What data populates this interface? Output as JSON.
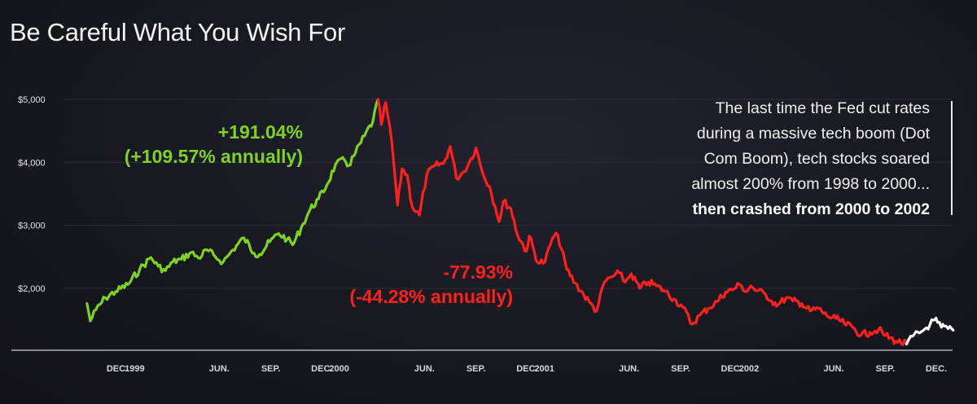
{
  "title": "Be Careful What You Wish For",
  "annotations": {
    "gain_pct": "+191.04%",
    "gain_annual": "(+109.57% annually)",
    "loss_pct": "-77.93%",
    "loss_annual": "(-44.28% annually)"
  },
  "note": {
    "lines": [
      "The last time the Fed cut rates",
      "during a massive tech boom (Dot",
      "Com Boom), tech stocks soared",
      "almost 200% from 1998 to 2000..."
    ],
    "bold_line": "then crashed from 2000 to 2002"
  },
  "colors": {
    "rise": "#7ed321",
    "fall": "#ff1f1f",
    "recent": "#ffffff",
    "background": "#17171f"
  },
  "chart_data": {
    "type": "line",
    "title": "Be Careful What You Wish For",
    "xlabel": "",
    "ylabel": "",
    "yticks": [
      {
        "value": 2000,
        "label": "$2,000"
      },
      {
        "value": 3000,
        "label": "$3,000"
      },
      {
        "value": 4000,
        "label": "$4,000"
      },
      {
        "value": 5000,
        "label": "$5,000"
      }
    ],
    "ylim": [
      1000,
      5000
    ],
    "xlim": [
      "1998-10-08",
      "1002-12-31"
    ],
    "xticks": [
      {
        "date": "1998-12-01",
        "label": "DEC."
      },
      {
        "date": "1999-01-01",
        "label": "1999"
      },
      {
        "date": "1999-06-01",
        "label": "JUN."
      },
      {
        "date": "1999-09-01",
        "label": "SEP."
      },
      {
        "date": "1999-12-01",
        "label": "DEC."
      },
      {
        "date": "2000-01-01",
        "label": "2000"
      },
      {
        "date": "2000-06-01",
        "label": "JUN."
      },
      {
        "date": "2000-09-01",
        "label": "SEP."
      },
      {
        "date": "2000-12-01",
        "label": "DEC."
      },
      {
        "date": "2001-01-01",
        "label": "2001"
      },
      {
        "date": "2001-06-01",
        "label": "JUN."
      },
      {
        "date": "2001-09-01",
        "label": "SEP."
      },
      {
        "date": "2001-12-01",
        "label": "DEC."
      },
      {
        "date": "2002-01-01",
        "label": "2002"
      },
      {
        "date": "2002-06-01",
        "label": "JUN."
      },
      {
        "date": "2002-09-01",
        "label": "SEP."
      },
      {
        "date": "2002-12-01",
        "label": "DEC."
      }
    ],
    "grid": true,
    "series": [
      {
        "color": "#7ed321",
        "points": [
          [
            "1998-10-08",
            1760
          ],
          [
            "1998-10-14",
            1480
          ],
          [
            "1998-10-24",
            1660
          ],
          [
            "1998-11-10",
            1850
          ],
          [
            "1998-11-28",
            1950
          ],
          [
            "1998-12-20",
            2060
          ],
          [
            "1999-01-10",
            2300
          ],
          [
            "1999-01-30",
            2490
          ],
          [
            "1999-02-12",
            2350
          ],
          [
            "1999-02-25",
            2280
          ],
          [
            "1999-03-10",
            2420
          ],
          [
            "1999-03-25",
            2460
          ],
          [
            "1999-04-12",
            2570
          ],
          [
            "1999-04-25",
            2480
          ],
          [
            "1999-05-10",
            2610
          ],
          [
            "1999-05-25",
            2500
          ],
          [
            "1999-06-08",
            2420
          ],
          [
            "1999-06-25",
            2610
          ],
          [
            "1999-07-15",
            2800
          ],
          [
            "1999-08-02",
            2560
          ],
          [
            "1999-08-12",
            2540
          ],
          [
            "1999-08-30",
            2740
          ],
          [
            "1999-09-15",
            2870
          ],
          [
            "1999-09-30",
            2780
          ],
          [
            "1999-10-10",
            2690
          ],
          [
            "1999-10-25",
            2960
          ],
          [
            "1999-11-10",
            3250
          ],
          [
            "1999-11-25",
            3420
          ],
          [
            "1999-12-10",
            3640
          ],
          [
            "1999-12-25",
            3960
          ],
          [
            "2000-01-10",
            4040
          ],
          [
            "2000-01-18",
            3950
          ],
          [
            "2000-01-30",
            4150
          ],
          [
            "2000-02-15",
            4420
          ],
          [
            "2000-03-01",
            4650
          ],
          [
            "2000-03-10",
            5000
          ]
        ]
      },
      {
        "color": "#ff1f1f",
        "points": [
          [
            "2000-03-10",
            5000
          ],
          [
            "2000-03-16",
            4600
          ],
          [
            "2000-03-24",
            4950
          ],
          [
            "2000-04-04",
            4300
          ],
          [
            "2000-04-14",
            3320
          ],
          [
            "2000-04-22",
            3900
          ],
          [
            "2000-05-01",
            3800
          ],
          [
            "2000-05-10",
            3300
          ],
          [
            "2000-05-23",
            3160
          ],
          [
            "2000-06-05",
            3800
          ],
          [
            "2000-06-20",
            3950
          ],
          [
            "2000-07-05",
            3980
          ],
          [
            "2000-07-17",
            4250
          ],
          [
            "2000-07-28",
            3750
          ],
          [
            "2000-08-10",
            3850
          ],
          [
            "2000-08-20",
            4000
          ],
          [
            "2000-09-01",
            4230
          ],
          [
            "2000-09-12",
            3850
          ],
          [
            "2000-09-25",
            3620
          ],
          [
            "2000-10-05",
            3300
          ],
          [
            "2000-10-12",
            3060
          ],
          [
            "2000-10-20",
            3380
          ],
          [
            "2000-11-02",
            3270
          ],
          [
            "2000-11-14",
            2850
          ],
          [
            "2000-11-30",
            2590
          ],
          [
            "2000-12-05",
            2830
          ],
          [
            "2000-12-20",
            2410
          ],
          [
            "2001-01-02",
            2420
          ],
          [
            "2001-01-15",
            2790
          ],
          [
            "2001-01-25",
            2840
          ],
          [
            "2001-02-10",
            2300
          ],
          [
            "2001-02-25",
            2080
          ],
          [
            "2001-03-12",
            1900
          ],
          [
            "2001-03-22",
            1780
          ],
          [
            "2001-04-04",
            1640
          ],
          [
            "2001-04-18",
            2100
          ],
          [
            "2001-05-01",
            2180
          ],
          [
            "2001-05-15",
            2240
          ],
          [
            "2001-05-25",
            2100
          ],
          [
            "2001-06-05",
            2230
          ],
          [
            "2001-06-20",
            2000
          ],
          [
            "2001-07-05",
            2100
          ],
          [
            "2001-07-20",
            2040
          ],
          [
            "2001-08-05",
            1950
          ],
          [
            "2001-08-20",
            1830
          ],
          [
            "2001-09-05",
            1700
          ],
          [
            "2001-09-21",
            1430
          ],
          [
            "2001-10-05",
            1570
          ],
          [
            "2001-10-20",
            1680
          ],
          [
            "2001-11-05",
            1790
          ],
          [
            "2001-11-20",
            1940
          ],
          [
            "2001-12-05",
            1990
          ],
          [
            "2001-12-15",
            2060
          ],
          [
            "2001-12-28",
            1950
          ],
          [
            "2002-01-04",
            2040
          ],
          [
            "2002-01-15",
            1960
          ],
          [
            "2002-01-30",
            1910
          ],
          [
            "2002-02-10",
            1800
          ],
          [
            "2002-02-22",
            1740
          ],
          [
            "2002-03-08",
            1850
          ],
          [
            "2002-03-20",
            1800
          ],
          [
            "2002-04-05",
            1760
          ],
          [
            "2002-04-20",
            1640
          ],
          [
            "2002-05-05",
            1680
          ],
          [
            "2002-05-20",
            1560
          ],
          [
            "2002-06-05",
            1520
          ],
          [
            "2002-06-20",
            1440
          ],
          [
            "2002-07-05",
            1380
          ],
          [
            "2002-07-20",
            1260
          ],
          [
            "2002-08-05",
            1300
          ],
          [
            "2002-08-20",
            1350
          ],
          [
            "2002-09-01",
            1250
          ],
          [
            "2002-09-20",
            1160
          ],
          [
            "2002-10-09",
            1114
          ]
        ]
      },
      {
        "color": "#ffffff",
        "points": [
          [
            "2002-10-09",
            1114
          ],
          [
            "2002-10-20",
            1240
          ],
          [
            "2002-11-01",
            1290
          ],
          [
            "2002-11-10",
            1350
          ],
          [
            "2002-11-20",
            1430
          ],
          [
            "2002-11-28",
            1500
          ],
          [
            "2002-12-03",
            1460
          ],
          [
            "2002-12-10",
            1380
          ],
          [
            "2002-12-15",
            1400
          ],
          [
            "2002-12-22",
            1360
          ],
          [
            "2002-12-31",
            1335
          ]
        ]
      }
    ]
  }
}
